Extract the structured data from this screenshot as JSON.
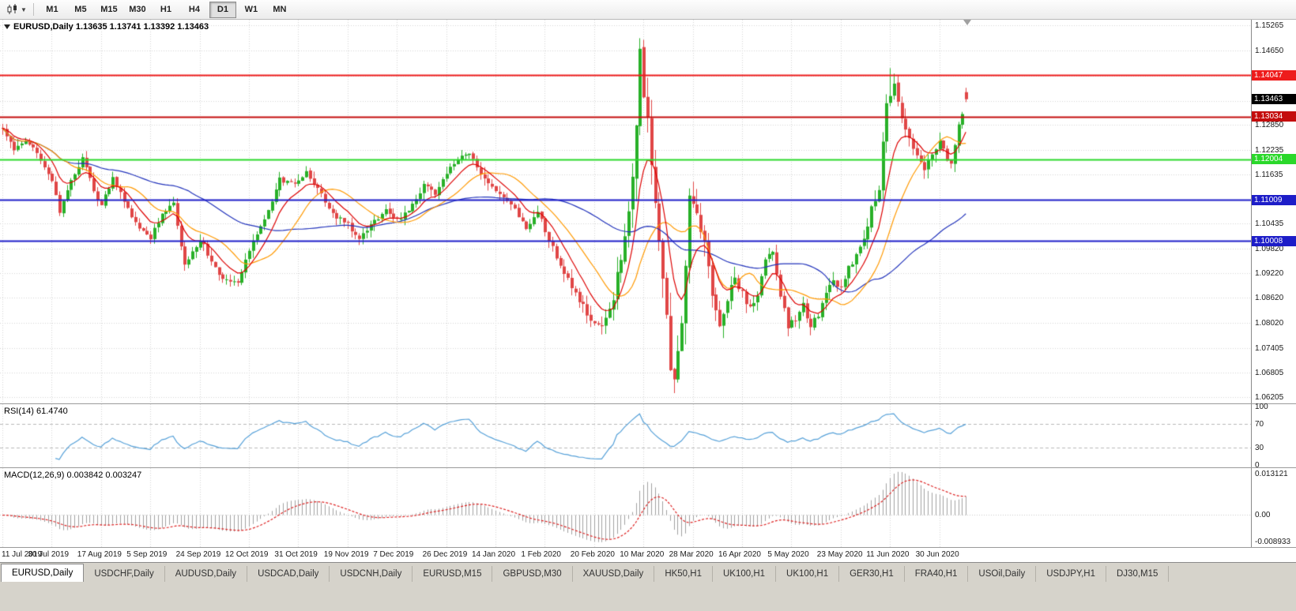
{
  "toolbar": {
    "chart_type_icon": "candlestick-chart-icon",
    "dropdown_icon": "chevron-down-icon",
    "timeframes": [
      "M1",
      "M5",
      "M15",
      "M30",
      "H1",
      "H4",
      "D1",
      "W1",
      "MN"
    ],
    "active_timeframe": "D1"
  },
  "tabs": {
    "items": [
      "EURUSD,Daily",
      "USDCHF,Daily",
      "AUDUSD,Daily",
      "USDCAD,Daily",
      "USDCNH,Daily",
      "EURUSD,M15",
      "GBPUSD,M30",
      "XAUUSD,Daily",
      "HK50,H1",
      "UK100,H1",
      "UK100,H1",
      "GER30,H1",
      "FRA40,H1",
      "USOil,Daily",
      "USDJPY,H1",
      "DJ30,M15"
    ],
    "active_index": 0
  },
  "chart_data": {
    "type": "candlestick",
    "symbol": "EURUSD",
    "timeframe": "Daily",
    "header": "EURUSD,Daily 1.13635 1.13741 1.13392 1.13463",
    "ohlc_header": {
      "open": "1.13635",
      "high": "1.13741",
      "low": "1.13392",
      "close": "1.13463"
    },
    "candles_count": 255,
    "x_label_step": 13,
    "x_labels": [
      "11 Jul 2019",
      "30 Jul 2019",
      "17 Aug 2019",
      "5 Sep 2019",
      "24 Sep 2019",
      "12 Oct 2019",
      "31 Oct 2019",
      "19 Nov 2019",
      "7 Dec 2019",
      "26 Dec 2019",
      "14 Jan 2020",
      "1 Feb 2020",
      "20 Feb 2020",
      "10 Mar 2020",
      "28 Mar 2020",
      "16 Apr 2020",
      "5 May 2020",
      "23 May 2020",
      "11 Jun 2020",
      "30 Jun 2020"
    ],
    "price_scale": {
      "top": 1.154,
      "bottom": 1.0605
    },
    "price_axis_ticks": [
      "1.15265",
      "1.14650",
      "1.14035",
      "1.13420",
      "1.12850",
      "1.12235",
      "1.11635",
      "1.11020",
      "1.10435",
      "1.09820",
      "1.09220",
      "1.08620",
      "1.08020",
      "1.07405",
      "1.06805",
      "1.06205"
    ],
    "h_lines": [
      {
        "price": 1.14047,
        "label": "1.14047",
        "color": "#ee1c1c"
      },
      {
        "price": 1.13034,
        "label": "1.13034",
        "color": "#c40d0d"
      },
      {
        "price": 1.12004,
        "label": "1.12004",
        "color": "#2ad82a"
      },
      {
        "price": 1.11009,
        "label": "1.11009",
        "color": "#1d1dc8"
      },
      {
        "price": 1.10008,
        "label": "1.10008",
        "color": "#1d1dc8"
      }
    ],
    "current_price": {
      "label": "1.13463",
      "price": 1.13463,
      "bg": "#000000",
      "fg": "#ffffff"
    },
    "candle_colors": {
      "up": "#28b028",
      "down": "#e04646"
    },
    "moving_averages": [
      {
        "name": "ma-slow-blue",
        "type": "sma",
        "period": 50,
        "color": "#2233bb"
      },
      {
        "name": "ma-mid-orange",
        "type": "sma",
        "period": 18,
        "color": "#ff9900"
      },
      {
        "name": "ma-fast-red",
        "type": "ema",
        "period": 9,
        "color": "#dd0000"
      }
    ],
    "anchors": [
      [
        0,
        1.1278
      ],
      [
        3,
        1.1224
      ],
      [
        6,
        1.1249
      ],
      [
        9,
        1.1217
      ],
      [
        13,
        1.1152
      ],
      [
        15,
        1.1075
      ],
      [
        18,
        1.1148
      ],
      [
        21,
        1.1205
      ],
      [
        24,
        1.1122
      ],
      [
        26,
        1.1088
      ],
      [
        29,
        1.1155
      ],
      [
        32,
        1.11
      ],
      [
        35,
        1.1045
      ],
      [
        39,
        1.101
      ],
      [
        42,
        1.1068
      ],
      [
        45,
        1.1096
      ],
      [
        48,
        1.094
      ],
      [
        52,
        1.1004
      ],
      [
        55,
        1.0954
      ],
      [
        58,
        1.0908
      ],
      [
        62,
        1.0898
      ],
      [
        65,
        1.098
      ],
      [
        69,
        1.1052
      ],
      [
        73,
        1.115
      ],
      [
        77,
        1.1136
      ],
      [
        80,
        1.1166
      ],
      [
        83,
        1.113
      ],
      [
        86,
        1.1074
      ],
      [
        89,
        1.1054
      ],
      [
        91,
        1.104
      ],
      [
        94,
        1.101
      ],
      [
        97,
        1.1042
      ],
      [
        101,
        1.1076
      ],
      [
        104,
        1.1052
      ],
      [
        108,
        1.1086
      ],
      [
        111,
        1.1136
      ],
      [
        114,
        1.1114
      ],
      [
        117,
        1.117
      ],
      [
        120,
        1.1196
      ],
      [
        123,
        1.1218
      ],
      [
        126,
        1.116
      ],
      [
        130,
        1.1118
      ],
      [
        134,
        1.1094
      ],
      [
        138,
        1.1034
      ],
      [
        141,
        1.1076
      ],
      [
        143,
        1.1024
      ],
      [
        146,
        1.0964
      ],
      [
        150,
        1.089
      ],
      [
        153,
        1.0844
      ],
      [
        156,
        1.0794
      ],
      [
        158,
        1.079
      ],
      [
        161,
        1.0856
      ],
      [
        164,
        1.1026
      ],
      [
        166,
        1.1146
      ],
      [
        168,
        1.1452
      ],
      [
        170,
        1.1284
      ],
      [
        172,
        1.1104
      ],
      [
        174,
        1.0924
      ],
      [
        176,
        1.0684
      ],
      [
        177,
        1.065
      ],
      [
        179,
        1.0804
      ],
      [
        181,
        1.1096
      ],
      [
        183,
        1.1062
      ],
      [
        185,
        1.0998
      ],
      [
        187,
        1.0868
      ],
      [
        189,
        1.0796
      ],
      [
        191,
        1.0862
      ],
      [
        193,
        1.0912
      ],
      [
        195,
        1.0872
      ],
      [
        197,
        1.0834
      ],
      [
        199,
        1.0872
      ],
      [
        201,
        1.0948
      ],
      [
        203,
        1.0978
      ],
      [
        205,
        1.0868
      ],
      [
        207,
        1.0794
      ],
      [
        209,
        1.0812
      ],
      [
        211,
        1.0844
      ],
      [
        213,
        1.0794
      ],
      [
        215,
        1.0822
      ],
      [
        217,
        1.0878
      ],
      [
        219,
        1.0898
      ],
      [
        221,
        1.0894
      ],
      [
        223,
        1.0932
      ],
      [
        225,
        1.0972
      ],
      [
        227,
        1.1008
      ],
      [
        229,
        1.1078
      ],
      [
        231,
        1.1134
      ],
      [
        233,
        1.1338
      ],
      [
        235,
        1.1386
      ],
      [
        237,
        1.1302
      ],
      [
        239,
        1.1252
      ],
      [
        241,
        1.1208
      ],
      [
        243,
        1.1178
      ],
      [
        245,
        1.1212
      ],
      [
        247,
        1.1248
      ],
      [
        249,
        1.1198
      ],
      [
        250,
        1.1186
      ],
      [
        252,
        1.1278
      ],
      [
        254,
        1.1346
      ]
    ],
    "vol_anchors": [
      [
        0,
        0.0034
      ],
      [
        140,
        0.0036
      ],
      [
        158,
        0.005
      ],
      [
        166,
        0.011
      ],
      [
        178,
        0.0115
      ],
      [
        186,
        0.0075
      ],
      [
        196,
        0.0048
      ],
      [
        215,
        0.004
      ],
      [
        230,
        0.0058
      ],
      [
        240,
        0.005
      ],
      [
        254,
        0.0038
      ]
    ],
    "forced": {
      "168": {
        "h": 1.1495
      },
      "177": {
        "l": 1.063
      },
      "234": {
        "h": 1.1422
      },
      "254": {
        "o": 1.13635,
        "h": 1.13741,
        "l": 1.13392,
        "c": 1.13463
      }
    },
    "seed": 12,
    "rsi": {
      "label": "RSI(14) 61.4740",
      "period": 14,
      "levels": [
        70,
        30
      ],
      "axis_labels": [
        "100",
        "70",
        "30",
        "0"
      ],
      "axis_values": [
        100,
        70,
        30,
        0
      ],
      "range": [
        0,
        100
      ],
      "color": "#55a0d8"
    },
    "macd": {
      "label": "MACD(12,26,9) 0.003842 0.003247",
      "fast": 12,
      "slow": 26,
      "signal": 9,
      "axis_labels": {
        "max": "0.013121",
        "zero": "0.00",
        "min": "-0.008933"
      },
      "range": [
        -0.008933,
        0.013121
      ],
      "hist_color": "#a0a0a0",
      "signal_color": "#dd2222"
    },
    "grid_color": "#d4d4d4"
  }
}
